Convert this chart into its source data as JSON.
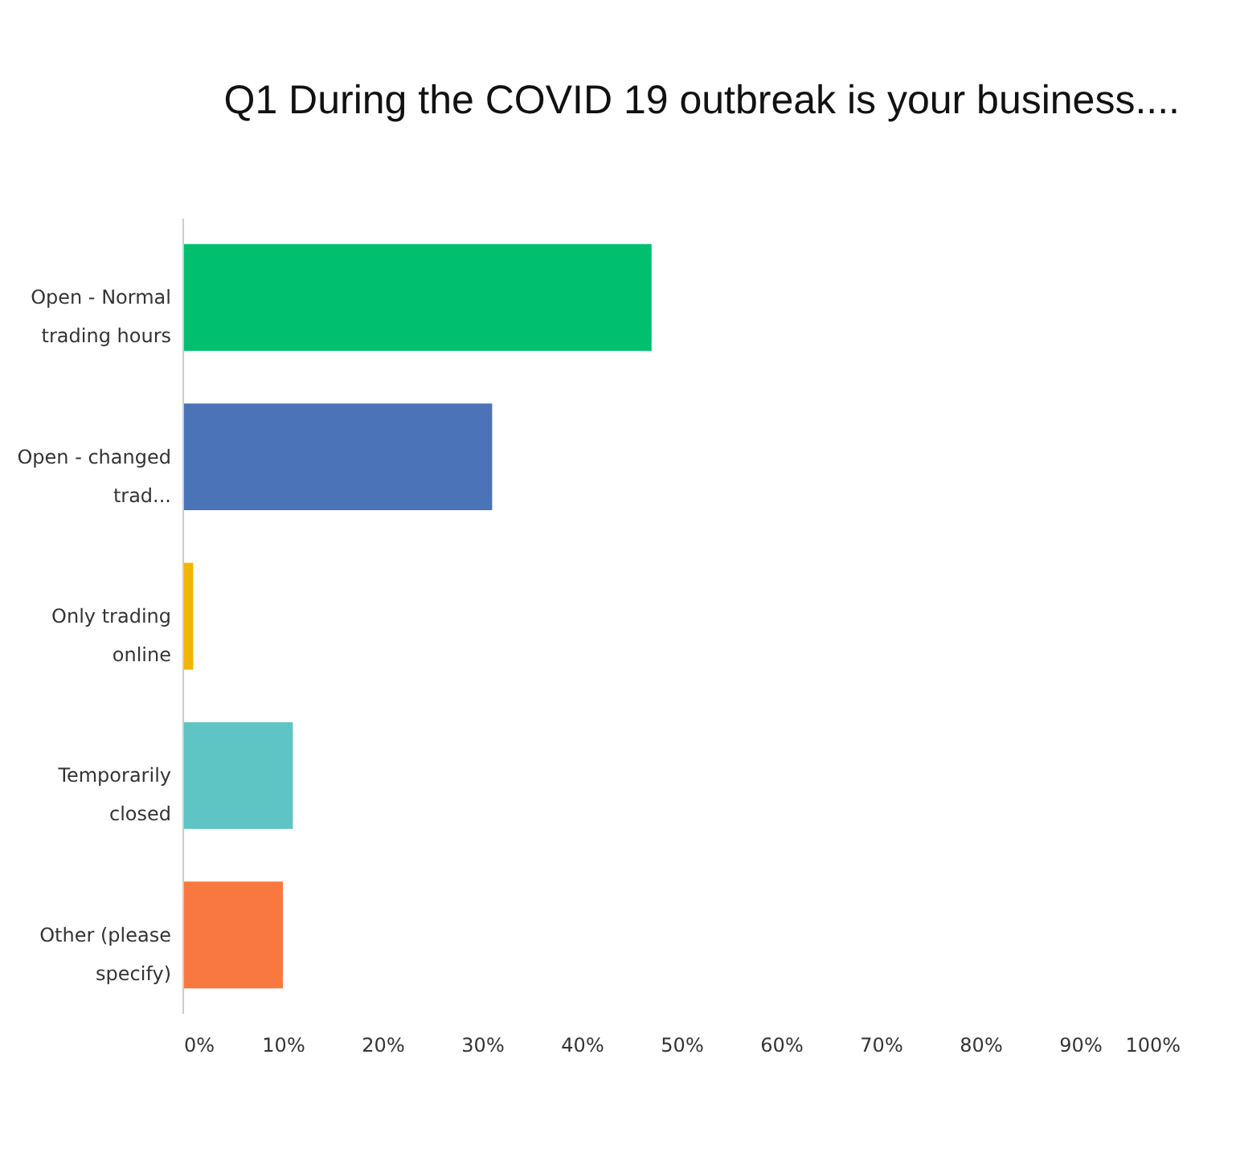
{
  "chart_data": {
    "type": "bar",
    "orientation": "horizontal",
    "title": "Q1 During the COVID 19 outbreak is your business....",
    "categories": [
      "Open - Normal trading hours",
      "Open - changed trad...",
      "Only trading online",
      "Temporarily closed",
      "Other (please specify)"
    ],
    "values": [
      47,
      31,
      1,
      11,
      10
    ],
    "colors": [
      "#00bf6f",
      "#4a73b8",
      "#f2b500",
      "#5ec4c4",
      "#f9783f"
    ],
    "xlim": [
      0,
      100
    ],
    "xticks": [
      {
        "value": 0,
        "label": "0%"
      },
      {
        "value": 10,
        "label": "10%"
      },
      {
        "value": 20,
        "label": "20%"
      },
      {
        "value": 30,
        "label": "30%"
      },
      {
        "value": 40,
        "label": "40%"
      },
      {
        "value": 50,
        "label": "50%"
      },
      {
        "value": 60,
        "label": "60%"
      },
      {
        "value": 70,
        "label": "70%"
      },
      {
        "value": 80,
        "label": "80%"
      },
      {
        "value": 90,
        "label": "90%"
      },
      {
        "value": 100,
        "label": "100%"
      }
    ],
    "grid": false
  }
}
